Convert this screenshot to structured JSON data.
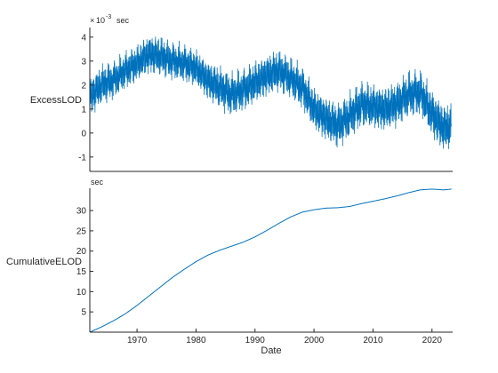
{
  "chart_data": [
    {
      "type": "line",
      "ylabel": "ExcessLOD",
      "unit_exponent": "-3",
      "unit": "sec",
      "xlim": [
        1962.0,
        2023.5
      ],
      "ylim": [
        -1.6,
        4.4
      ],
      "yticks": [
        -1,
        0,
        1,
        2,
        3,
        4
      ],
      "grid": false,
      "line_color": "#0072BD",
      "series": [
        {
          "x": [
            1962,
            1964,
            1966,
            1968,
            1970,
            1972,
            1974,
            1976,
            1978,
            1980,
            1982,
            1984,
            1986,
            1988,
            1990,
            1992,
            1994,
            1996,
            1998,
            2000,
            2002,
            2004,
            2006,
            2008,
            2010,
            2012,
            2014,
            2016,
            2018,
            2020,
            2022,
            2023.3
          ],
          "values": [
            1.5,
            2.0,
            2.2,
            2.6,
            2.9,
            3.3,
            3.2,
            3.0,
            2.9,
            2.7,
            2.2,
            1.9,
            1.6,
            1.8,
            2.1,
            2.4,
            2.6,
            2.3,
            1.9,
            1.0,
            0.6,
            0.3,
            0.7,
            1.2,
            1.1,
            1.0,
            1.2,
            1.6,
            1.7,
            0.8,
            0.2,
            0.3
          ],
          "amplitude": [
            0.75,
            0.75,
            0.7,
            0.7,
            0.7,
            0.75,
            0.75,
            0.7,
            0.7,
            0.7,
            0.75,
            0.8,
            0.8,
            0.8,
            0.8,
            0.8,
            0.8,
            0.75,
            0.8,
            0.8,
            0.85,
            0.85,
            0.85,
            0.85,
            0.85,
            0.85,
            0.85,
            0.85,
            0.85,
            0.9,
            0.9,
            0.9
          ]
        }
      ]
    },
    {
      "type": "line",
      "ylabel": "CumulativeELOD",
      "unit": "sec",
      "xlabel": "Date",
      "xlim": [
        1962.0,
        2023.5
      ],
      "ylim": [
        0,
        35.5
      ],
      "yticks": [
        5,
        10,
        15,
        20,
        25,
        30
      ],
      "xticks": [
        1970,
        1980,
        1990,
        2000,
        2010,
        2020
      ],
      "grid": false,
      "line_color": "#0072BD",
      "series": [
        {
          "x": [
            1962,
            1964,
            1966,
            1968,
            1970,
            1972,
            1974,
            1976,
            1978,
            1980,
            1982,
            1984,
            1986,
            1988,
            1990,
            1992,
            1994,
            1996,
            1998,
            2000,
            2002,
            2004,
            2006,
            2008,
            2010,
            2012,
            2014,
            2016,
            2018,
            2020,
            2022,
            2023.3
          ],
          "values": [
            0.0,
            1.3,
            2.8,
            4.5,
            6.6,
            8.9,
            11.2,
            13.5,
            15.5,
            17.4,
            19.0,
            20.2,
            21.2,
            22.2,
            23.5,
            25.1,
            26.8,
            28.4,
            29.6,
            30.2,
            30.6,
            30.7,
            31.0,
            31.7,
            32.3,
            32.9,
            33.6,
            34.4,
            35.1,
            35.3,
            35.1,
            35.3
          ]
        }
      ]
    }
  ]
}
